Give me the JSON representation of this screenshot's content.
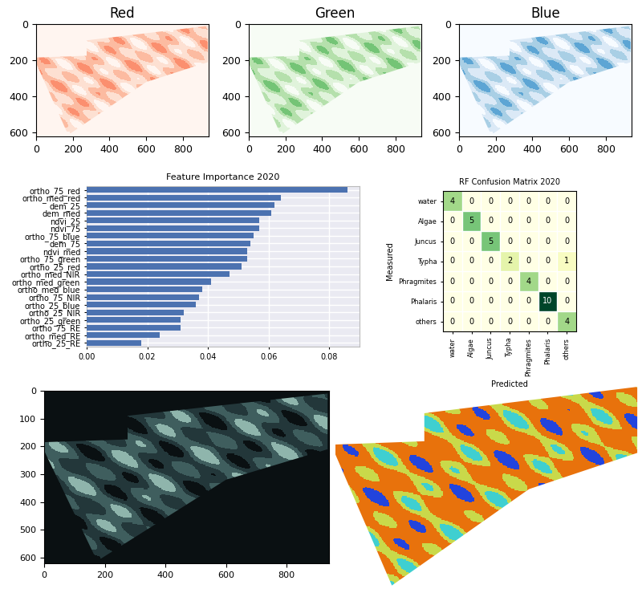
{
  "chart_data": [
    {
      "type": "image",
      "title": "Red",
      "colors": [
        "#fff5f0",
        "#fde0d2",
        "#fcbba1",
        "#fb8f6f"
      ],
      "xlim": [
        0,
        940
      ],
      "ylim": [
        620,
        0
      ],
      "xticks": [
        0,
        200,
        400,
        600,
        800
      ],
      "yticks": [
        0,
        200,
        400,
        600
      ]
    },
    {
      "type": "image",
      "title": "Green",
      "colors": [
        "#f7fcf5",
        "#e0f3db",
        "#b5e0ac",
        "#74c476"
      ],
      "xlim": [
        0,
        940
      ],
      "ylim": [
        620,
        0
      ],
      "xticks": [
        0,
        200,
        400,
        600,
        800
      ],
      "yticks": [
        0,
        200,
        400,
        600
      ]
    },
    {
      "type": "image",
      "title": "Blue",
      "colors": [
        "#f7fbff",
        "#dbe9f6",
        "#a9cfe5",
        "#5da5d4"
      ],
      "xlim": [
        0,
        940
      ],
      "ylim": [
        620,
        0
      ],
      "xticks": [
        0,
        200,
        400,
        600,
        800
      ],
      "yticks": [
        0,
        200,
        400,
        600
      ]
    },
    {
      "type": "bar",
      "orientation": "horizontal",
      "title": "Feature Importance 2020",
      "categories": [
        "ortho_75_red",
        "ortho_med_red",
        "dem_25",
        "dem_med",
        "ndvi_25",
        "ndvi_75",
        "ortho_75_blue",
        "dem_75",
        "ndvi_med",
        "ortho_75_green",
        "ortho_25_red",
        "ortho_med_NIR",
        "ortho_med_green",
        "ortho_med_blue",
        "ortho_75_NIR",
        "ortho_25_blue",
        "ortho_25_NIR",
        "ortho_25_green",
        "ortho_75_RE",
        "ortho_med_RE",
        "ortho_25_RE"
      ],
      "values": [
        0.086,
        0.064,
        0.062,
        0.061,
        0.057,
        0.057,
        0.055,
        0.054,
        0.053,
        0.053,
        0.051,
        0.047,
        0.041,
        0.038,
        0.037,
        0.036,
        0.032,
        0.031,
        0.031,
        0.024,
        0.018
      ],
      "color": "#4c72b0",
      "xlim": [
        0,
        0.09
      ],
      "xticks": [
        {
          "value": 0,
          "label": "0.00"
        },
        {
          "value": 0.02,
          "label": "0.02"
        },
        {
          "value": 0.04,
          "label": "0.04"
        },
        {
          "value": 0.06,
          "label": "0.06"
        },
        {
          "value": 0.08,
          "label": "0.08"
        }
      ],
      "grid": true
    },
    {
      "type": "heatmap",
      "title": "RF Confusion Matrix 2020",
      "x_label": "Predicted",
      "y_label": "Measured",
      "categories": [
        "water",
        "Algae",
        "Juncus",
        "Typha",
        "Phragmites",
        "Phalaris",
        "others"
      ],
      "values": [
        [
          4,
          0,
          0,
          0,
          0,
          0,
          0
        ],
        [
          0,
          5,
          0,
          0,
          0,
          0,
          0
        ],
        [
          0,
          0,
          5,
          0,
          0,
          0,
          0
        ],
        [
          0,
          0,
          0,
          2,
          0,
          0,
          1
        ],
        [
          0,
          0,
          0,
          0,
          4,
          0,
          0
        ],
        [
          0,
          0,
          0,
          0,
          0,
          10,
          0
        ],
        [
          0,
          0,
          0,
          0,
          0,
          0,
          4
        ]
      ],
      "data_labels": true
    },
    {
      "type": "image",
      "colors": [
        "#0a1012",
        "#23373a",
        "#3f5e5e",
        "#8fb5ac"
      ],
      "xlim": [
        0,
        940
      ],
      "ylim": [
        620,
        0
      ],
      "xticks": [
        0,
        200,
        400,
        600,
        800
      ],
      "yticks": [
        0,
        100,
        200,
        300,
        400,
        500,
        600
      ]
    },
    {
      "type": "image",
      "tick_labels": false,
      "colors": [
        "#3fcfd0",
        "#c9d94a",
        "#e8720c",
        "#e8720c",
        "#2244dd"
      ]
    }
  ]
}
